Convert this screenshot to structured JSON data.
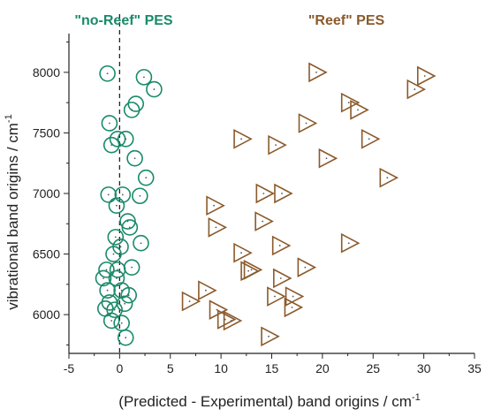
{
  "chart_data": {
    "type": "scatter",
    "xlabel": "(Predicted - Experimental) band origins / cm",
    "xlabel_sup": "-1",
    "ylabel": "vibrational band origins / cm",
    "ylabel_sup": "-1",
    "xlim": [
      -5,
      35
    ],
    "ylim": [
      5680,
      8320
    ],
    "x_ticks": [
      -5,
      0,
      5,
      10,
      15,
      20,
      25,
      30,
      35
    ],
    "y_ticks": [
      6000,
      6500,
      7000,
      7500,
      8000
    ],
    "grid": false,
    "reference_line": {
      "x": 0,
      "style": "dashed"
    },
    "series": [
      {
        "name": "\"no-Reef\" PES",
        "marker": "circle",
        "color": "#1a8a6a",
        "points": [
          [
            -1.2,
            7990
          ],
          [
            2.4,
            7960
          ],
          [
            3.4,
            7860
          ],
          [
            1.6,
            7740
          ],
          [
            1.2,
            7690
          ],
          [
            -1.0,
            7580
          ],
          [
            -0.2,
            7450
          ],
          [
            0.6,
            7450
          ],
          [
            -0.8,
            7400
          ],
          [
            1.5,
            7290
          ],
          [
            2.6,
            7130
          ],
          [
            -1.1,
            6990
          ],
          [
            0.3,
            6990
          ],
          [
            2.0,
            6980
          ],
          [
            -0.3,
            6900
          ],
          [
            0.8,
            6770
          ],
          [
            1.0,
            6720
          ],
          [
            -0.4,
            6640
          ],
          [
            0.1,
            6560
          ],
          [
            2.1,
            6590
          ],
          [
            -0.6,
            6500
          ],
          [
            1.2,
            6390
          ],
          [
            -0.2,
            6370
          ],
          [
            -1.3,
            6370
          ],
          [
            -1.6,
            6300
          ],
          [
            -0.3,
            6300
          ],
          [
            -1.2,
            6200
          ],
          [
            0.2,
            6200
          ],
          [
            0.9,
            6160
          ],
          [
            -1.0,
            6100
          ],
          [
            0.5,
            6090
          ],
          [
            -1.4,
            6050
          ],
          [
            -0.5,
            6040
          ],
          [
            -0.8,
            5950
          ],
          [
            0.2,
            5930
          ],
          [
            0.6,
            5810
          ]
        ]
      },
      {
        "name": "\"Reef\" PES",
        "marker": "triangle",
        "color": "#8b5a2b",
        "points": [
          [
            19.4,
            8000
          ],
          [
            30.1,
            7970
          ],
          [
            29.1,
            7860
          ],
          [
            22.6,
            7750
          ],
          [
            23.5,
            7690
          ],
          [
            18.4,
            7580
          ],
          [
            12.0,
            7450
          ],
          [
            15.4,
            7400
          ],
          [
            24.6,
            7450
          ],
          [
            20.4,
            7290
          ],
          [
            26.4,
            7130
          ],
          [
            14.2,
            7000
          ],
          [
            16.0,
            7000
          ],
          [
            9.3,
            6900
          ],
          [
            14.1,
            6770
          ],
          [
            9.5,
            6720
          ],
          [
            22.6,
            6590
          ],
          [
            15.8,
            6570
          ],
          [
            12.0,
            6510
          ],
          [
            18.3,
            6390
          ],
          [
            13.0,
            6370
          ],
          [
            12.7,
            6360
          ],
          [
            15.9,
            6300
          ],
          [
            8.5,
            6200
          ],
          [
            15.3,
            6150
          ],
          [
            17.1,
            6150
          ],
          [
            6.9,
            6110
          ],
          [
            17.0,
            6060
          ],
          [
            9.6,
            6040
          ],
          [
            10.4,
            5960
          ],
          [
            11.0,
            5950
          ],
          [
            14.7,
            5820
          ]
        ]
      }
    ]
  }
}
